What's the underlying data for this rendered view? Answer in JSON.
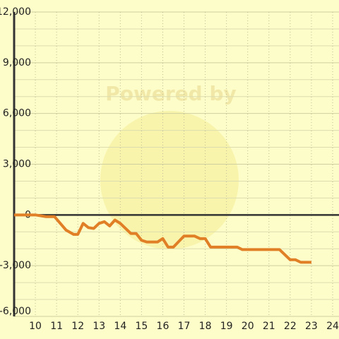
{
  "chart_data": {
    "type": "line",
    "watermark": "Powered by",
    "x": [
      9.0,
      10,
      10.5,
      10.9,
      11.45,
      11.8,
      12.0,
      12.25,
      12.5,
      12.75,
      13.0,
      13.25,
      13.5,
      13.75,
      14.0,
      14.5,
      14.75,
      15.0,
      15.25,
      15.75,
      16.0,
      16.25,
      16.5,
      17.0,
      17.5,
      17.75,
      18.0,
      18.25,
      19.5,
      19.75,
      21.5,
      22.0,
      22.25,
      22.5,
      23.0
    ],
    "series": [
      {
        "color": "#e07f25",
        "values": [
          0,
          0,
          -100,
          -100,
          -900,
          -1150,
          -1150,
          -500,
          -750,
          -800,
          -500,
          -400,
          -650,
          -300,
          -500,
          -1100,
          -1100,
          -1500,
          -1600,
          -1600,
          -1400,
          -1900,
          -1900,
          -1250,
          -1250,
          -1400,
          -1400,
          -1900,
          -1900,
          -2050,
          -2050,
          -2650,
          -2650,
          -2800,
          -2800
        ]
      }
    ],
    "xlim": [
      9,
      24.3
    ],
    "ylim": [
      -6000,
      12000
    ],
    "xticks": [
      10,
      11,
      12,
      13,
      14,
      15,
      16,
      17,
      18,
      19,
      20,
      21,
      22,
      23,
      24
    ],
    "yticks": [
      {
        "value": 12000,
        "label": "12,000"
      },
      {
        "value": 9000,
        "label": "9,000"
      },
      {
        "value": 6000,
        "label": "6,000"
      },
      {
        "value": 3000,
        "label": "3,000"
      },
      0,
      {
        "value": -3000,
        "label": "-3,000"
      },
      {
        "value": -6000,
        "label": "-6,000"
      }
    ],
    "y_minor_ticks": [
      11000,
      10000,
      8000,
      7000,
      5000,
      4000,
      2000,
      1000,
      -1000,
      -2000,
      -4000,
      -5000
    ],
    "grid": true
  }
}
